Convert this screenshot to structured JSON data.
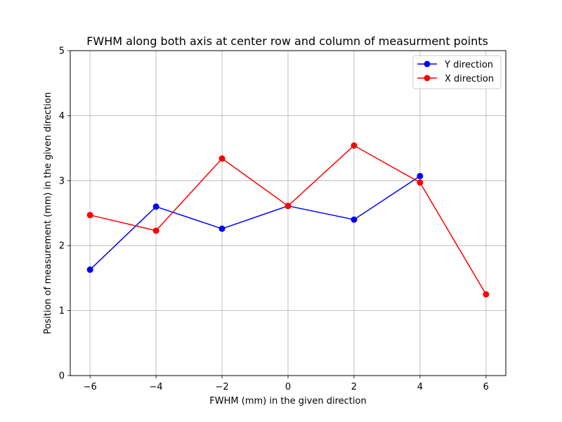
{
  "chart_data": {
    "type": "line",
    "title": "FWHM along both axis at center row and column of measurment points",
    "xlabel": "FWHM (mm) in the given direction",
    "ylabel": "Position of measurement (mm) in the given direction",
    "xlim": [
      -6.6,
      6.6
    ],
    "ylim": [
      0,
      5
    ],
    "xticks": [
      -6,
      -4,
      -2,
      0,
      2,
      4,
      6
    ],
    "xtick_labels": [
      "−6",
      "−4",
      "−2",
      "0",
      "2",
      "4",
      "6"
    ],
    "yticks": [
      0,
      1,
      2,
      3,
      4,
      5
    ],
    "ytick_labels": [
      "0",
      "1",
      "2",
      "3",
      "4",
      "5"
    ],
    "grid": true,
    "legend_position": "top-right",
    "series": [
      {
        "name": "Y direction",
        "color": "#0000ff",
        "marker": "circle",
        "x": [
          -6,
          -4,
          -2,
          0,
          2,
          4
        ],
        "y": [
          1.63,
          2.6,
          2.26,
          2.61,
          2.4,
          3.07
        ]
      },
      {
        "name": "X direction",
        "color": "#ff0000",
        "marker": "circle",
        "x": [
          -6,
          -4,
          -2,
          0,
          2,
          4,
          6
        ],
        "y": [
          2.47,
          2.23,
          3.34,
          2.61,
          3.54,
          2.97,
          1.25
        ]
      }
    ]
  }
}
